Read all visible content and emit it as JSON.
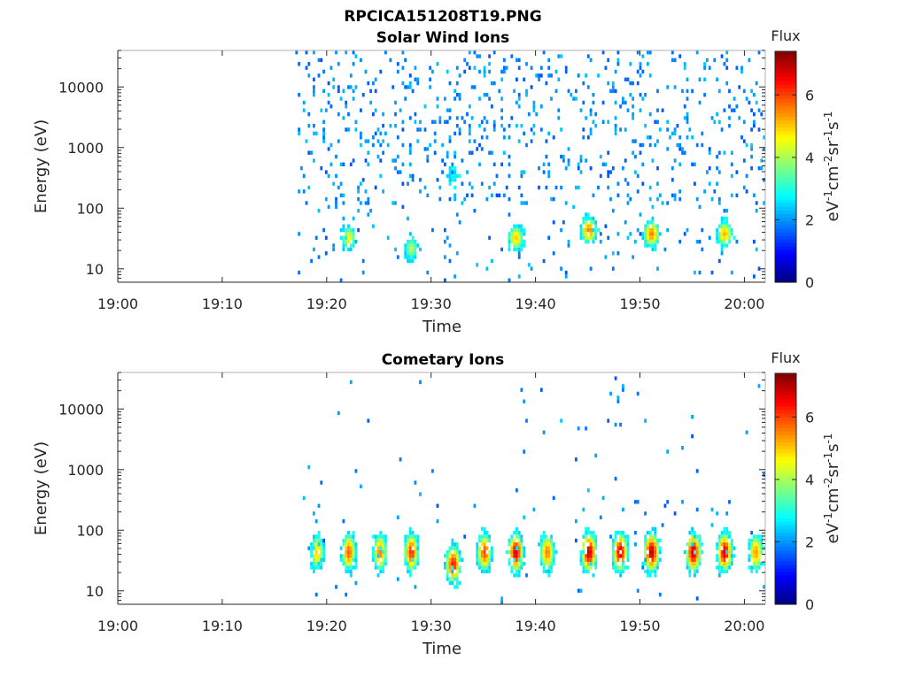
{
  "figure": {
    "title": "RPCICA151208T19.PNG"
  },
  "colorbar": {
    "label_html_parts": [
      "eV",
      "-1",
      "cm",
      "-2",
      "sr",
      "-1",
      "s",
      "-1"
    ],
    "title": "Flux",
    "range": [
      0,
      7.4
    ],
    "ticks": [
      "0",
      "2",
      "4",
      "6"
    ],
    "colormap": "jet"
  },
  "chart_data": [
    {
      "type": "heatmap",
      "title": "Solar Wind Ions",
      "xlabel": "Time",
      "ylabel": "Energy (eV)",
      "yscale": "log",
      "ylim": [
        6,
        40000
      ],
      "xlim": [
        "19:00",
        "20:02"
      ],
      "x_ticks": [
        "19:00",
        "19:10",
        "19:20",
        "19:30",
        "19:40",
        "19:50",
        "20:00"
      ],
      "y_ticks": [
        "10",
        "100",
        "1000",
        "10000"
      ],
      "data_start": "19:17",
      "data_end": "20:02",
      "flux_peaks": [
        {
          "time": "19:22",
          "energy_eV": 30,
          "flux": 4.5
        },
        {
          "time": "19:28",
          "energy_eV": 20,
          "flux": 4.0
        },
        {
          "time": "19:32",
          "energy_eV": 300,
          "flux": 2.8
        },
        {
          "time": "19:38",
          "energy_eV": 30,
          "flux": 5.0
        },
        {
          "time": "19:45",
          "energy_eV": 40,
          "flux": 5.6
        },
        {
          "time": "19:51",
          "energy_eV": 35,
          "flux": 5.6
        },
        {
          "time": "19:58",
          "energy_eV": 35,
          "flux": 5.2
        }
      ]
    },
    {
      "type": "heatmap",
      "title": "Cometary Ions",
      "xlabel": "Time",
      "ylabel": "Energy (eV)",
      "yscale": "log",
      "ylim": [
        6,
        40000
      ],
      "xlim": [
        "19:00",
        "20:02"
      ],
      "x_ticks": [
        "19:00",
        "19:10",
        "19:20",
        "19:30",
        "19:40",
        "19:50",
        "20:00"
      ],
      "y_ticks": [
        "10",
        "100",
        "1000",
        "10000"
      ],
      "data_start": "19:17",
      "data_end": "20:02",
      "flux_peaks": [
        {
          "time": "19:19",
          "energy_eV": 40,
          "flux": 5.0
        },
        {
          "time": "19:22",
          "energy_eV": 40,
          "flux": 5.8
        },
        {
          "time": "19:25",
          "energy_eV": 40,
          "flux": 5.6
        },
        {
          "time": "19:28",
          "energy_eV": 40,
          "flux": 6.2
        },
        {
          "time": "19:32",
          "energy_eV": 25,
          "flux": 6.4
        },
        {
          "time": "19:35",
          "energy_eV": 40,
          "flux": 6.0
        },
        {
          "time": "19:38",
          "energy_eV": 40,
          "flux": 6.8
        },
        {
          "time": "19:41",
          "energy_eV": 40,
          "flux": 5.6
        },
        {
          "time": "19:45",
          "energy_eV": 40,
          "flux": 7.0
        },
        {
          "time": "19:48",
          "energy_eV": 40,
          "flux": 6.8
        },
        {
          "time": "19:51",
          "energy_eV": 40,
          "flux": 7.0
        },
        {
          "time": "19:55",
          "energy_eV": 40,
          "flux": 6.9
        },
        {
          "time": "19:58",
          "energy_eV": 40,
          "flux": 6.8
        },
        {
          "time": "20:01",
          "energy_eV": 40,
          "flux": 5.4
        }
      ]
    }
  ]
}
